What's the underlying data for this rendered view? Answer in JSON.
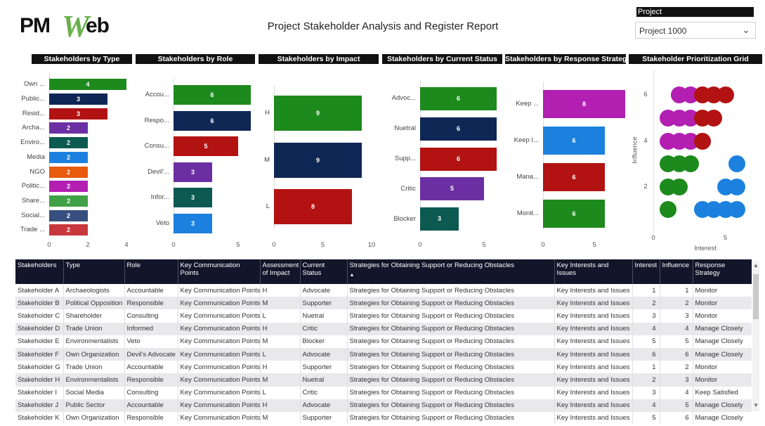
{
  "logo": {
    "left": "PM",
    "w": "W",
    "right": "eb"
  },
  "title": "Project Stakeholder Analysis and Register Report",
  "slicer": {
    "label": "Project",
    "value": "Project 1000"
  },
  "charts": {
    "type": {
      "title": "Stakeholders by Type",
      "ticks": [
        "0",
        "2",
        "4"
      ],
      "max": 4,
      "items": [
        {
          "label": "Own ...",
          "value": 4,
          "color": "#1d8a1d"
        },
        {
          "label": "Public...",
          "value": 3,
          "color": "#0f2754"
        },
        {
          "label": "Resid...",
          "value": 3,
          "color": "#b31212"
        },
        {
          "label": "Archa...",
          "value": 2,
          "color": "#6c2fa3"
        },
        {
          "label": "Enviro...",
          "value": 2,
          "color": "#0c5a52"
        },
        {
          "label": "Media",
          "value": 2,
          "color": "#1c81de"
        },
        {
          "label": "NGO",
          "value": 2,
          "color": "#e85a0c"
        },
        {
          "label": "Politic...",
          "value": 2,
          "color": "#b21fb1"
        },
        {
          "label": "Share...",
          "value": 2,
          "color": "#40a147"
        },
        {
          "label": "Social...",
          "value": 2,
          "color": "#364f7f"
        },
        {
          "label": "Trade ...",
          "value": 2,
          "color": "#c7383c"
        }
      ]
    },
    "role": {
      "title": "Stakeholders by Role",
      "ticks": [
        "0",
        "5"
      ],
      "max": 6.8,
      "items": [
        {
          "label": "Accou...",
          "value": 6,
          "color": "#1d8a1d"
        },
        {
          "label": "Respo...",
          "value": 6,
          "color": "#0f2754"
        },
        {
          "label": "Consu...",
          "value": 5,
          "color": "#b31212"
        },
        {
          "label": "Devil'...",
          "value": 3,
          "color": "#6c2fa3"
        },
        {
          "label": "Infor...",
          "value": 3,
          "color": "#0c5a52"
        },
        {
          "label": "Veto",
          "value": 3,
          "color": "#1c81de"
        }
      ]
    },
    "impact": {
      "title": "Stakeholders by Impact",
      "ticks": [
        "0",
        "5",
        "10"
      ],
      "max": 10,
      "items": [
        {
          "label": "H",
          "value": 9,
          "color": "#1d8a1d"
        },
        {
          "label": "M",
          "value": 9,
          "color": "#0f2754"
        },
        {
          "label": "L",
          "value": 8,
          "color": "#b31212"
        }
      ]
    },
    "status": {
      "title": "Stakeholders by Current Status",
      "ticks": [
        "0",
        "5"
      ],
      "max": 6.8,
      "items": [
        {
          "label": "Advoc...",
          "value": 6,
          "color": "#1d8a1d"
        },
        {
          "label": "Nuetral",
          "value": 6,
          "color": "#0f2754"
        },
        {
          "label": "Supp...",
          "value": 6,
          "color": "#b31212"
        },
        {
          "label": "Critic",
          "value": 5,
          "color": "#6c2fa3"
        },
        {
          "label": "Blocker",
          "value": 3,
          "color": "#0c5a52"
        }
      ]
    },
    "strategy": {
      "title": "Stakeholders by Response Strategy",
      "ticks": [
        "0",
        "5"
      ],
      "max": 8.2,
      "items": [
        {
          "label": "Keep ...",
          "value": 8,
          "color": "#b21fb1"
        },
        {
          "label": "Keep I...",
          "value": 6,
          "color": "#1c81de"
        },
        {
          "label": "Mana...",
          "value": 6,
          "color": "#b31212"
        },
        {
          "label": "Monit...",
          "value": 6,
          "color": "#1d8a1d"
        }
      ]
    }
  },
  "grid": {
    "title": "Stakeholder Prioritization Grid",
    "xlabel": "Interest",
    "ylabel": "Influence",
    "xticks": [
      "0",
      "5"
    ],
    "yticks": [
      "6",
      "4",
      "2"
    ],
    "points": [
      {
        "x": 1.8,
        "y": 6,
        "c": "#b21fb1"
      },
      {
        "x": 2.6,
        "y": 6,
        "c": "#b21fb1"
      },
      {
        "x": 3.4,
        "y": 6,
        "c": "#b31212"
      },
      {
        "x": 4.2,
        "y": 6,
        "c": "#b31212"
      },
      {
        "x": 5.0,
        "y": 6,
        "c": "#b31212"
      },
      {
        "x": 1.0,
        "y": 5,
        "c": "#b21fb1"
      },
      {
        "x": 1.8,
        "y": 5,
        "c": "#b21fb1"
      },
      {
        "x": 2.6,
        "y": 5,
        "c": "#b21fb1"
      },
      {
        "x": 3.4,
        "y": 5,
        "c": "#b31212"
      },
      {
        "x": 4.2,
        "y": 5,
        "c": "#b31212"
      },
      {
        "x": 1.0,
        "y": 4,
        "c": "#b21fb1"
      },
      {
        "x": 1.8,
        "y": 4,
        "c": "#b21fb1"
      },
      {
        "x": 2.6,
        "y": 4,
        "c": "#b21fb1"
      },
      {
        "x": 3.4,
        "y": 4,
        "c": "#b31212"
      },
      {
        "x": 1.0,
        "y": 3,
        "c": "#1d8a1d"
      },
      {
        "x": 1.8,
        "y": 3,
        "c": "#1d8a1d"
      },
      {
        "x": 2.6,
        "y": 3,
        "c": "#1d8a1d"
      },
      {
        "x": 5.8,
        "y": 3,
        "c": "#1c81de"
      },
      {
        "x": 1.0,
        "y": 2,
        "c": "#1d8a1d"
      },
      {
        "x": 1.8,
        "y": 2,
        "c": "#1d8a1d"
      },
      {
        "x": 5.0,
        "y": 2,
        "c": "#1c81de"
      },
      {
        "x": 5.8,
        "y": 2,
        "c": "#1c81de"
      },
      {
        "x": 1.0,
        "y": 1,
        "c": "#1d8a1d"
      },
      {
        "x": 3.4,
        "y": 1,
        "c": "#1c81de"
      },
      {
        "x": 4.2,
        "y": 1,
        "c": "#1c81de"
      },
      {
        "x": 5.0,
        "y": 1,
        "c": "#1c81de"
      },
      {
        "x": 5.8,
        "y": 1,
        "c": "#1c81de"
      }
    ]
  },
  "table": {
    "headers": [
      "Stakeholders",
      "Type",
      "Role",
      "Key Communication Points",
      "Assessment of Impact",
      "Current Status",
      "Strategies for Obtaining Support or Reducing Obstacles",
      "Key Interests and Issues",
      "Interest",
      "Influence",
      "Response Strategy"
    ],
    "sort_indicator": "▲",
    "rows": [
      [
        "Stakeholder A",
        "Archaeologists",
        "Accountable",
        "Key Communication Points",
        "H",
        "Advocate",
        "Strategies for Obtaining Support or Reducing Obstacles",
        "Key Interests and Issues",
        "1",
        "1",
        "Monitor"
      ],
      [
        "Stakeholder B",
        "Political Opposition",
        "Responsible",
        "Key Communication Points",
        "M",
        "Supporter",
        "Strategies for Obtaining Support or Reducing Obstacles",
        "Key Interests and Issues",
        "2",
        "2",
        "Monitor"
      ],
      [
        "Stakeholder C",
        "Shareholder",
        "Consulting",
        "Key Communication Points",
        "L",
        "Nuetral",
        "Strategies for Obtaining Support or Reducing Obstacles",
        "Key Interests and Issues",
        "3",
        "3",
        "Monitor"
      ],
      [
        "Stakeholder D",
        "Trade Union",
        "Informed",
        "Key Communication Points",
        "H",
        "Critic",
        "Strategies for Obtaining Support or Reducing Obstacles",
        "Key Interests and Issues",
        "4",
        "4",
        "Manage Closely"
      ],
      [
        "Stakeholder E",
        "Environmentalists",
        "Veto",
        "Key Communication Points",
        "M",
        "Blocker",
        "Strategies for Obtaining Support or Reducing Obstacles",
        "Key Interests and Issues",
        "5",
        "5",
        "Manage Closely"
      ],
      [
        "Stakeholder F",
        "Own Organization",
        "Devil's Advocate",
        "Key Communication Points",
        "L",
        "Advocate",
        "Strategies for Obtaining Support or Reducing Obstacles",
        "Key Interests and Issues",
        "6",
        "6",
        "Manage Closely"
      ],
      [
        "Stakeholder G",
        "Trade Union",
        "Accountable",
        "Key Communication Points",
        "H",
        "Supporter",
        "Strategies for Obtaining Support or Reducing Obstacles",
        "Key Interests and Issues",
        "1",
        "2",
        "Monitor"
      ],
      [
        "Stakeholder H",
        "Environmentalists",
        "Responsible",
        "Key Communication Points",
        "M",
        "Nuetral",
        "Strategies for Obtaining Support or Reducing Obstacles",
        "Key Interests and Issues",
        "2",
        "3",
        "Monitor"
      ],
      [
        "Stakeholder I",
        "Social Media",
        "Consulting",
        "Key Communication Points",
        "L",
        "Critic",
        "Strategies for Obtaining Support or Reducing Obstacles",
        "Key Interests and Issues",
        "3",
        "4",
        "Keep Satisfied"
      ],
      [
        "Stakeholder J",
        "Public Sector",
        "Accountable",
        "Key Communication Points",
        "H",
        "Advocate",
        "Strategies for Obtaining Support or Reducing Obstacles",
        "Key Interests and Issues",
        "4",
        "5",
        "Manage Closely"
      ],
      [
        "Stakeholder K",
        "Own Organization",
        "Responsible",
        "Key Communication Points",
        "M",
        "Supporter",
        "Strategies for Obtaining Support or Reducing Obstacles",
        "Key Interests and Issues",
        "5",
        "6",
        "Manage Closely"
      ]
    ]
  }
}
